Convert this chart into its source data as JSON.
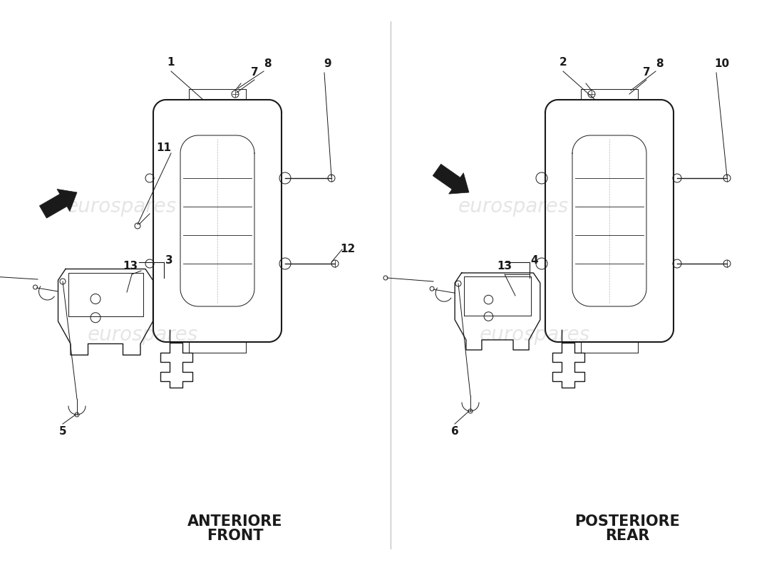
{
  "background_color": "#ffffff",
  "line_color": "#1a1a1a",
  "watermark_color": "#cccccc",
  "watermark_text": "eurospares",
  "left_label_top": "ANTERIORE",
  "left_label_bottom": "FRONT",
  "right_label_top": "POSTERIORE",
  "right_label_bottom": "REAR",
  "label_fontsize": 15,
  "number_fontsize": 11,
  "figsize": [
    11.0,
    8.0
  ],
  "dpi": 100,
  "divider_color": "#bbbbbb"
}
